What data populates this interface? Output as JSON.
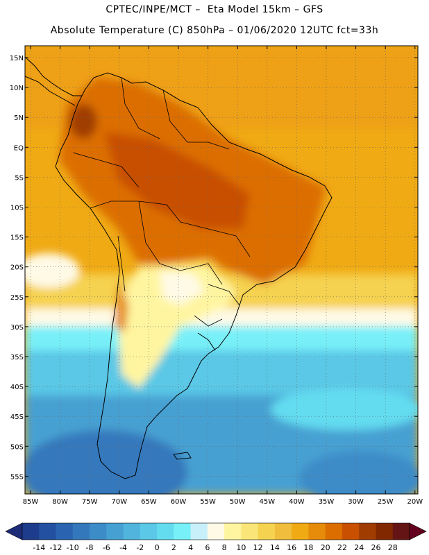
{
  "header": {
    "line1": "CPTEC/INPE/MCT –  Eta Model 15km – GFS",
    "line2": "Absolute Temperature (C) 850hPa – 01/06/2020 12UTC fct=33h"
  },
  "map": {
    "lat_labels": [
      "15N",
      "10N",
      "5N",
      "EQ",
      "5S",
      "10S",
      "15S",
      "20S",
      "25S",
      "30S",
      "35S",
      "40S",
      "45S",
      "50S",
      "55S"
    ],
    "lon_labels": [
      "85W",
      "80W",
      "75W",
      "70W",
      "65W",
      "60W",
      "55W",
      "50W",
      "45W",
      "40W",
      "35W",
      "30W",
      "25W",
      "20W"
    ]
  },
  "colorbar": {
    "labels": [
      "-14",
      "-12",
      "-10",
      "-8",
      "-6",
      "-4",
      "-2",
      "0",
      "2",
      "4",
      "6",
      "8",
      "10",
      "12",
      "14",
      "16",
      "18",
      "20",
      "22",
      "24",
      "26",
      "28"
    ],
    "colors": [
      "#1e3c8c",
      "#2350a0",
      "#2a64b0",
      "#3478bc",
      "#3c8cc8",
      "#46a0d2",
      "#50b4dc",
      "#5ac8e6",
      "#64dcf0",
      "#78f0f8",
      "#c8f0fa",
      "#fffae6",
      "#fff5a0",
      "#fae678",
      "#f5d250",
      "#f0be3c",
      "#f0aa14",
      "#e68c0a",
      "#dc6e00",
      "#c85000",
      "#a03c00",
      "#822800",
      "#641414"
    ],
    "min_color": "#1e2c78",
    "max_color": "#64001e"
  }
}
